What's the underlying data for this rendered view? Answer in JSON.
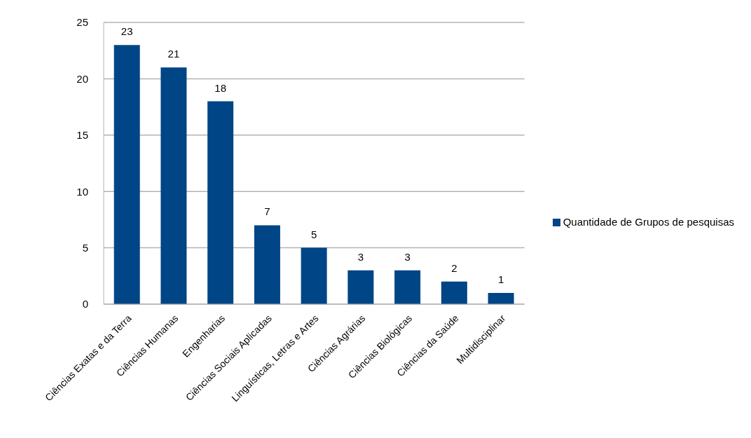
{
  "chart_data": {
    "type": "bar",
    "categories": [
      "Ciências Exatas e da Terra",
      "Ciências Humanas",
      "Engenharias",
      "Ciências Sociais Aplicadas",
      "Linguísticas, Letras e Artes",
      "Ciências Agrárias",
      "Ciências Biológicas",
      "Ciências da Saúde",
      "Multidisciplinar"
    ],
    "series": [
      {
        "name": "Quantidade de Grupos de pesquisas",
        "color": "#004586",
        "values": [
          23,
          21,
          18,
          7,
          5,
          3,
          3,
          2,
          1
        ]
      }
    ],
    "ylim": [
      0,
      25
    ],
    "yticks": [
      0,
      5,
      10,
      15,
      20,
      25
    ],
    "grid": "y",
    "legend": "right",
    "data_labels": true
  }
}
